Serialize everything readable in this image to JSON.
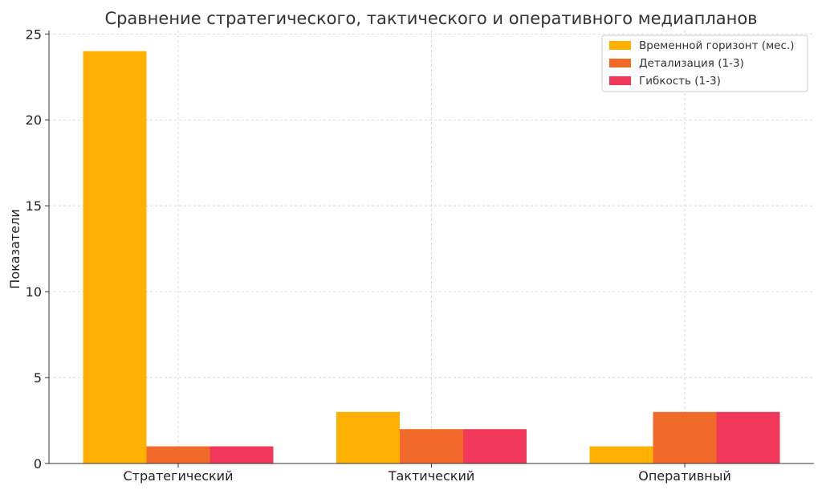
{
  "chart_data": {
    "type": "bar",
    "title": "Сравнение стратегического, тактического и оперативного медиапланов",
    "xlabel": "",
    "ylabel": "Показатели",
    "categories": [
      "Стратегический",
      "Тактический",
      "Оперативный"
    ],
    "series": [
      {
        "name": "Временной горизонт (мес.)",
        "values": [
          24,
          3,
          1
        ],
        "color": "#FFB000"
      },
      {
        "name": "Детализация (1-3)",
        "values": [
          1,
          2,
          3
        ],
        "color": "#F26A2A"
      },
      {
        "name": "Гибкость (1-3)",
        "values": [
          1,
          2,
          3
        ],
        "color": "#F2385A"
      }
    ],
    "ylim": [
      0,
      25.2
    ],
    "yticks": [
      0,
      5,
      10,
      15,
      20,
      25
    ],
    "grid": true,
    "legend": "top-right"
  }
}
